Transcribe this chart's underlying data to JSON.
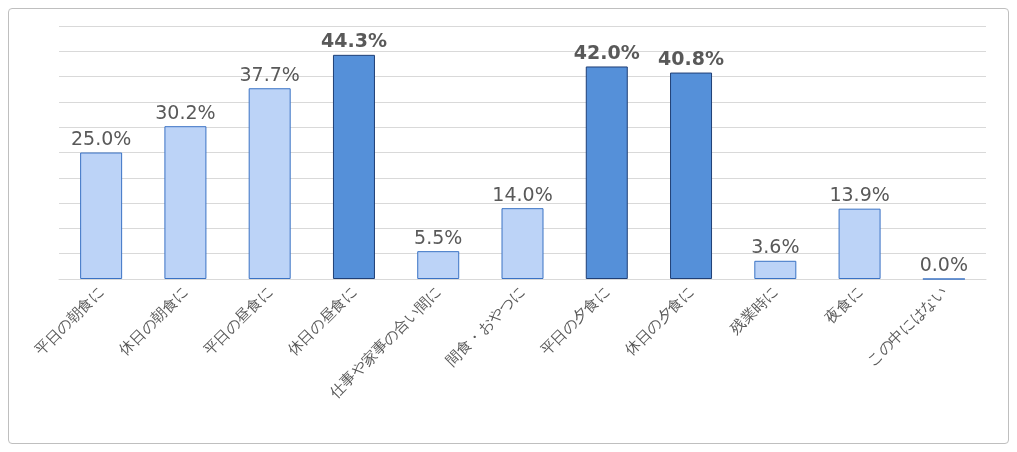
{
  "chart_data": {
    "type": "bar",
    "categories": [
      "平日の朝食に",
      "休日の朝食に",
      "平日の昼食に",
      "休日の昼食に",
      "仕事や家事の合い間に",
      "間食・おやつに",
      "平日の夕食に",
      "休日の夕食に",
      "残業時に",
      "夜食に",
      "この中にはない"
    ],
    "values": [
      25.0,
      30.2,
      37.7,
      44.3,
      5.5,
      14.0,
      42.0,
      40.8,
      3.6,
      13.9,
      0.0
    ],
    "colors": [
      "#bcd3f7",
      "#bcd3f7",
      "#bcd3f7",
      "#5590d9",
      "#bcd3f7",
      "#bcd3f7",
      "#5590d9",
      "#5590d9",
      "#bcd3f7",
      "#bcd3f7",
      "#3a72c4"
    ],
    "value_labels": [
      "25.0%",
      "30.2%",
      "37.7%",
      "44.3%",
      "5.5%",
      "14.0%",
      "42.0%",
      "40.8%",
      "3.6%",
      "13.9%",
      "0.0%"
    ],
    "ylim": [
      0,
      50
    ],
    "grid": "y",
    "tick_labels": "x"
  }
}
